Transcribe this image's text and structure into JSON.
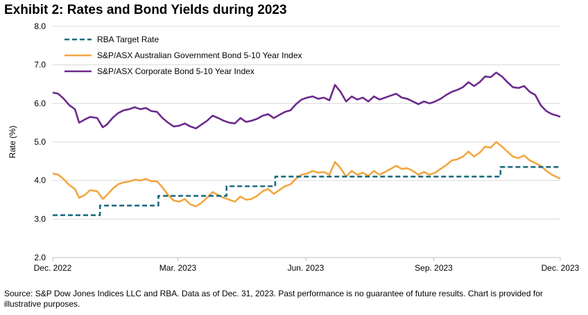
{
  "title": "Exhibit 2: Rates and Bond Yields during 2023",
  "source": "Source: S&P Dow Jones Indices LLC and RBA.  Data as of Dec. 31, 2023.  Past performance is no guarantee of future results.  Chart is provided for illustrative purposes.",
  "chart_data": {
    "type": "line",
    "ylabel": "Rate (%)",
    "xlabel": "",
    "ylim": [
      2.0,
      8.0
    ],
    "yticks": [
      "2.0",
      "3.0",
      "4.0",
      "5.0",
      "6.0",
      "7.0",
      "8.0"
    ],
    "xlim": [
      "2022-12-01",
      "2023-12-01"
    ],
    "xticks": [
      {
        "label": "Dec. 2022",
        "date": "2022-12-01"
      },
      {
        "label": "Mar. 2023",
        "date": "2023-03-01"
      },
      {
        "label": "Jun. 2023",
        "date": "2023-06-01"
      },
      {
        "label": "Sep. 2023",
        "date": "2023-09-01"
      },
      {
        "label": "Dec. 2023",
        "date": "2023-12-01"
      }
    ],
    "grid": "horizontal",
    "legend_position": "top-left",
    "series": [
      {
        "name": "RBA Target Rate",
        "color": "#1a6a80",
        "style": "dashed",
        "step": true,
        "points": [
          {
            "x": "2022-12-01",
            "y": 3.1
          },
          {
            "x": "2023-01-04",
            "y": 3.35
          },
          {
            "x": "2023-02-15",
            "y": 3.6
          },
          {
            "x": "2023-04-05",
            "y": 3.85
          },
          {
            "x": "2023-05-10",
            "y": 4.1
          },
          {
            "x": "2023-10-19",
            "y": 4.35
          },
          {
            "x": "2023-12-01",
            "y": 4.35
          }
        ]
      },
      {
        "name": "S&P/ASX Australian Government Bond 5-10 Year Index",
        "color": "#f2a641",
        "style": "solid",
        "points": [
          {
            "x": "2022-12-01",
            "y": 4.18
          },
          {
            "x": "2022-12-05",
            "y": 4.15
          },
          {
            "x": "2022-12-09",
            "y": 4.03
          },
          {
            "x": "2022-12-13",
            "y": 3.88
          },
          {
            "x": "2022-12-17",
            "y": 3.78
          },
          {
            "x": "2022-12-20",
            "y": 3.55
          },
          {
            "x": "2022-12-24",
            "y": 3.62
          },
          {
            "x": "2022-12-28",
            "y": 3.75
          },
          {
            "x": "2023-01-02",
            "y": 3.72
          },
          {
            "x": "2023-01-06",
            "y": 3.52
          },
          {
            "x": "2023-01-09",
            "y": 3.62
          },
          {
            "x": "2023-01-13",
            "y": 3.78
          },
          {
            "x": "2023-01-17",
            "y": 3.9
          },
          {
            "x": "2023-01-21",
            "y": 3.95
          },
          {
            "x": "2023-01-25",
            "y": 3.97
          },
          {
            "x": "2023-01-29",
            "y": 4.02
          },
          {
            "x": "2023-02-02",
            "y": 4.0
          },
          {
            "x": "2023-02-06",
            "y": 4.04
          },
          {
            "x": "2023-02-10",
            "y": 3.98
          },
          {
            "x": "2023-02-14",
            "y": 3.98
          },
          {
            "x": "2023-02-18",
            "y": 3.82
          },
          {
            "x": "2023-02-22",
            "y": 3.62
          },
          {
            "x": "2023-02-26",
            "y": 3.48
          },
          {
            "x": "2023-03-02",
            "y": 3.45
          },
          {
            "x": "2023-03-06",
            "y": 3.52
          },
          {
            "x": "2023-03-10",
            "y": 3.38
          },
          {
            "x": "2023-03-14",
            "y": 3.33
          },
          {
            "x": "2023-03-18",
            "y": 3.42
          },
          {
            "x": "2023-03-22",
            "y": 3.55
          },
          {
            "x": "2023-03-26",
            "y": 3.7
          },
          {
            "x": "2023-03-30",
            "y": 3.62
          },
          {
            "x": "2023-04-03",
            "y": 3.55
          },
          {
            "x": "2023-04-07",
            "y": 3.5
          },
          {
            "x": "2023-04-11",
            "y": 3.45
          },
          {
            "x": "2023-04-15",
            "y": 3.58
          },
          {
            "x": "2023-04-19",
            "y": 3.5
          },
          {
            "x": "2023-04-23",
            "y": 3.52
          },
          {
            "x": "2023-04-27",
            "y": 3.6
          },
          {
            "x": "2023-05-01",
            "y": 3.72
          },
          {
            "x": "2023-05-05",
            "y": 3.78
          },
          {
            "x": "2023-05-09",
            "y": 3.65
          },
          {
            "x": "2023-05-13",
            "y": 3.75
          },
          {
            "x": "2023-05-17",
            "y": 3.85
          },
          {
            "x": "2023-05-21",
            "y": 3.9
          },
          {
            "x": "2023-05-25",
            "y": 4.05
          },
          {
            "x": "2023-05-29",
            "y": 4.15
          },
          {
            "x": "2023-06-02",
            "y": 4.18
          },
          {
            "x": "2023-06-06",
            "y": 4.25
          },
          {
            "x": "2023-06-10",
            "y": 4.2
          },
          {
            "x": "2023-06-14",
            "y": 4.22
          },
          {
            "x": "2023-06-18",
            "y": 4.15
          },
          {
            "x": "2023-06-22",
            "y": 4.48
          },
          {
            "x": "2023-06-26",
            "y": 4.32
          },
          {
            "x": "2023-06-30",
            "y": 4.1
          },
          {
            "x": "2023-07-04",
            "y": 4.25
          },
          {
            "x": "2023-07-08",
            "y": 4.15
          },
          {
            "x": "2023-07-12",
            "y": 4.2
          },
          {
            "x": "2023-07-16",
            "y": 4.12
          },
          {
            "x": "2023-07-20",
            "y": 4.25
          },
          {
            "x": "2023-07-24",
            "y": 4.15
          },
          {
            "x": "2023-07-28",
            "y": 4.22
          },
          {
            "x": "2023-08-01",
            "y": 4.3
          },
          {
            "x": "2023-08-05",
            "y": 4.38
          },
          {
            "x": "2023-08-09",
            "y": 4.3
          },
          {
            "x": "2023-08-13",
            "y": 4.32
          },
          {
            "x": "2023-08-17",
            "y": 4.25
          },
          {
            "x": "2023-08-21",
            "y": 4.15
          },
          {
            "x": "2023-08-25",
            "y": 4.22
          },
          {
            "x": "2023-08-29",
            "y": 4.15
          },
          {
            "x": "2023-09-02",
            "y": 4.2
          },
          {
            "x": "2023-09-06",
            "y": 4.3
          },
          {
            "x": "2023-09-10",
            "y": 4.4
          },
          {
            "x": "2023-09-14",
            "y": 4.52
          },
          {
            "x": "2023-09-18",
            "y": 4.55
          },
          {
            "x": "2023-09-22",
            "y": 4.62
          },
          {
            "x": "2023-09-26",
            "y": 4.75
          },
          {
            "x": "2023-09-30",
            "y": 4.62
          },
          {
            "x": "2023-10-04",
            "y": 4.72
          },
          {
            "x": "2023-10-08",
            "y": 4.88
          },
          {
            "x": "2023-10-12",
            "y": 4.85
          },
          {
            "x": "2023-10-16",
            "y": 5.0
          },
          {
            "x": "2023-10-20",
            "y": 4.88
          },
          {
            "x": "2023-10-24",
            "y": 4.75
          },
          {
            "x": "2023-10-28",
            "y": 4.62
          },
          {
            "x": "2023-11-01",
            "y": 4.58
          },
          {
            "x": "2023-11-05",
            "y": 4.65
          },
          {
            "x": "2023-11-09",
            "y": 4.52
          },
          {
            "x": "2023-11-13",
            "y": 4.45
          },
          {
            "x": "2023-11-17",
            "y": 4.38
          },
          {
            "x": "2023-11-21",
            "y": 4.25
          },
          {
            "x": "2023-11-25",
            "y": 4.15
          },
          {
            "x": "2023-11-29",
            "y": 4.08
          },
          {
            "x": "2023-12-01",
            "y": 4.05
          }
        ]
      },
      {
        "name": "S&P/ASX Corporate Bond 5-10 Year Index",
        "color": "#6b2a8c",
        "style": "solid",
        "points": [
          {
            "x": "2022-12-01",
            "y": 6.28
          },
          {
            "x": "2022-12-05",
            "y": 6.25
          },
          {
            "x": "2022-12-09",
            "y": 6.12
          },
          {
            "x": "2022-12-13",
            "y": 5.95
          },
          {
            "x": "2022-12-17",
            "y": 5.85
          },
          {
            "x": "2022-12-20",
            "y": 5.5
          },
          {
            "x": "2022-12-24",
            "y": 5.58
          },
          {
            "x": "2022-12-28",
            "y": 5.65
          },
          {
            "x": "2023-01-02",
            "y": 5.62
          },
          {
            "x": "2023-01-06",
            "y": 5.38
          },
          {
            "x": "2023-01-09",
            "y": 5.45
          },
          {
            "x": "2023-01-13",
            "y": 5.62
          },
          {
            "x": "2023-01-17",
            "y": 5.75
          },
          {
            "x": "2023-01-21",
            "y": 5.82
          },
          {
            "x": "2023-01-25",
            "y": 5.85
          },
          {
            "x": "2023-01-29",
            "y": 5.9
          },
          {
            "x": "2023-02-02",
            "y": 5.85
          },
          {
            "x": "2023-02-06",
            "y": 5.88
          },
          {
            "x": "2023-02-10",
            "y": 5.8
          },
          {
            "x": "2023-02-14",
            "y": 5.78
          },
          {
            "x": "2023-02-18",
            "y": 5.62
          },
          {
            "x": "2023-02-22",
            "y": 5.5
          },
          {
            "x": "2023-02-26",
            "y": 5.4
          },
          {
            "x": "2023-03-02",
            "y": 5.42
          },
          {
            "x": "2023-03-06",
            "y": 5.48
          },
          {
            "x": "2023-03-10",
            "y": 5.4
          },
          {
            "x": "2023-03-14",
            "y": 5.35
          },
          {
            "x": "2023-03-18",
            "y": 5.45
          },
          {
            "x": "2023-03-22",
            "y": 5.55
          },
          {
            "x": "2023-03-26",
            "y": 5.68
          },
          {
            "x": "2023-03-30",
            "y": 5.62
          },
          {
            "x": "2023-04-03",
            "y": 5.55
          },
          {
            "x": "2023-04-07",
            "y": 5.5
          },
          {
            "x": "2023-04-11",
            "y": 5.48
          },
          {
            "x": "2023-04-15",
            "y": 5.62
          },
          {
            "x": "2023-04-19",
            "y": 5.52
          },
          {
            "x": "2023-04-23",
            "y": 5.55
          },
          {
            "x": "2023-04-27",
            "y": 5.6
          },
          {
            "x": "2023-05-01",
            "y": 5.68
          },
          {
            "x": "2023-05-05",
            "y": 5.72
          },
          {
            "x": "2023-05-09",
            "y": 5.62
          },
          {
            "x": "2023-05-13",
            "y": 5.7
          },
          {
            "x": "2023-05-17",
            "y": 5.78
          },
          {
            "x": "2023-05-21",
            "y": 5.82
          },
          {
            "x": "2023-05-25",
            "y": 5.98
          },
          {
            "x": "2023-05-29",
            "y": 6.1
          },
          {
            "x": "2023-06-02",
            "y": 6.15
          },
          {
            "x": "2023-06-06",
            "y": 6.18
          },
          {
            "x": "2023-06-10",
            "y": 6.12
          },
          {
            "x": "2023-06-14",
            "y": 6.15
          },
          {
            "x": "2023-06-18",
            "y": 6.08
          },
          {
            "x": "2023-06-22",
            "y": 6.48
          },
          {
            "x": "2023-06-26",
            "y": 6.3
          },
          {
            "x": "2023-06-30",
            "y": 6.05
          },
          {
            "x": "2023-07-04",
            "y": 6.18
          },
          {
            "x": "2023-07-08",
            "y": 6.1
          },
          {
            "x": "2023-07-12",
            "y": 6.15
          },
          {
            "x": "2023-07-16",
            "y": 6.05
          },
          {
            "x": "2023-07-20",
            "y": 6.18
          },
          {
            "x": "2023-07-24",
            "y": 6.1
          },
          {
            "x": "2023-07-28",
            "y": 6.15
          },
          {
            "x": "2023-08-01",
            "y": 6.2
          },
          {
            "x": "2023-08-05",
            "y": 6.25
          },
          {
            "x": "2023-08-09",
            "y": 6.15
          },
          {
            "x": "2023-08-13",
            "y": 6.12
          },
          {
            "x": "2023-08-17",
            "y": 6.05
          },
          {
            "x": "2023-08-21",
            "y": 5.98
          },
          {
            "x": "2023-08-25",
            "y": 6.05
          },
          {
            "x": "2023-08-29",
            "y": 6.0
          },
          {
            "x": "2023-09-02",
            "y": 6.05
          },
          {
            "x": "2023-09-06",
            "y": 6.12
          },
          {
            "x": "2023-09-10",
            "y": 6.22
          },
          {
            "x": "2023-09-14",
            "y": 6.3
          },
          {
            "x": "2023-09-18",
            "y": 6.35
          },
          {
            "x": "2023-09-22",
            "y": 6.42
          },
          {
            "x": "2023-09-26",
            "y": 6.55
          },
          {
            "x": "2023-09-30",
            "y": 6.45
          },
          {
            "x": "2023-10-04",
            "y": 6.55
          },
          {
            "x": "2023-10-08",
            "y": 6.7
          },
          {
            "x": "2023-10-12",
            "y": 6.68
          },
          {
            "x": "2023-10-16",
            "y": 6.8
          },
          {
            "x": "2023-10-20",
            "y": 6.7
          },
          {
            "x": "2023-10-24",
            "y": 6.55
          },
          {
            "x": "2023-10-28",
            "y": 6.42
          },
          {
            "x": "2023-11-01",
            "y": 6.4
          },
          {
            "x": "2023-11-05",
            "y": 6.45
          },
          {
            "x": "2023-11-09",
            "y": 6.3
          },
          {
            "x": "2023-11-13",
            "y": 6.22
          },
          {
            "x": "2023-11-17",
            "y": 5.95
          },
          {
            "x": "2023-11-21",
            "y": 5.8
          },
          {
            "x": "2023-11-25",
            "y": 5.72
          },
          {
            "x": "2023-11-29",
            "y": 5.68
          },
          {
            "x": "2023-12-01",
            "y": 5.65
          }
        ]
      }
    ]
  }
}
